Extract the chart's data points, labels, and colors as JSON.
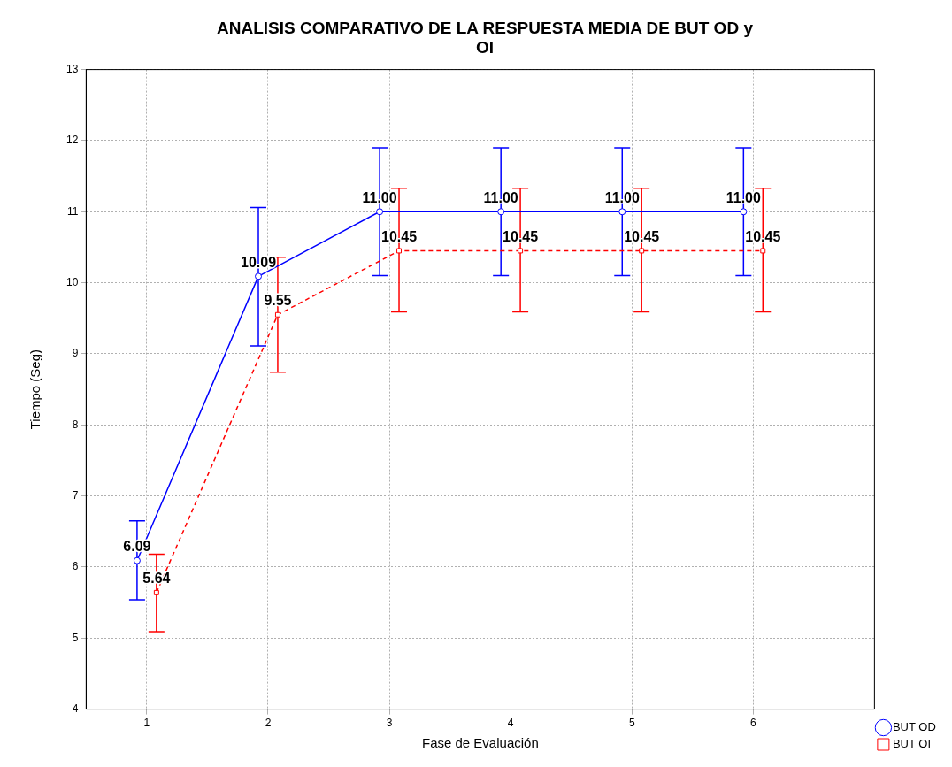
{
  "chart_data": {
    "type": "line",
    "title": "ANALISIS COMPARATIVO DE LA RESPUESTA MEDIA DE BUT OD y OI",
    "xlabel": "Fase de Evaluación",
    "ylabel": "Tiempo (Seg)",
    "series": [
      {
        "name": "BUT OD",
        "color": "#0000ff",
        "marker": "circle",
        "line_style": "solid",
        "x": [
          0.92,
          1.92,
          2.92,
          3.92,
          4.92,
          5.92
        ],
        "values": [
          6.09,
          10.09,
          11.0,
          11.0,
          11.0,
          11.0
        ],
        "value_labels": [
          "6.09",
          "10.09",
          "11.00",
          "11.00",
          "11.00",
          "11.00"
        ],
        "errors": [
          [
            5.54,
            6.65
          ],
          [
            9.11,
            11.06
          ],
          [
            10.1,
            11.9
          ],
          [
            10.1,
            11.9
          ],
          [
            10.1,
            11.9
          ],
          [
            10.1,
            11.9
          ]
        ]
      },
      {
        "name": "BUT OI",
        "color": "#ff0000",
        "marker": "square",
        "line_style": "dashed",
        "x": [
          1.08,
          2.08,
          3.08,
          4.08,
          5.08,
          6.08
        ],
        "values": [
          5.64,
          9.55,
          10.45,
          10.45,
          10.45,
          10.45
        ],
        "value_labels": [
          "5.64",
          "9.55",
          "10.45",
          "10.45",
          "10.45",
          "10.45"
        ],
        "errors": [
          [
            5.09,
            6.18
          ],
          [
            8.74,
            10.36
          ],
          [
            9.59,
            11.33
          ],
          [
            9.59,
            11.33
          ],
          [
            9.59,
            11.33
          ],
          [
            9.59,
            11.33
          ]
        ]
      }
    ],
    "xlim": [
      0.5,
      7
    ],
    "xticks": [
      1,
      2,
      3,
      4,
      5,
      6
    ],
    "ylim": [
      4,
      13
    ],
    "yticks": [
      4,
      5,
      6,
      7,
      8,
      9,
      10,
      11,
      12,
      13
    ],
    "grid": true,
    "legend": "bottom right"
  }
}
